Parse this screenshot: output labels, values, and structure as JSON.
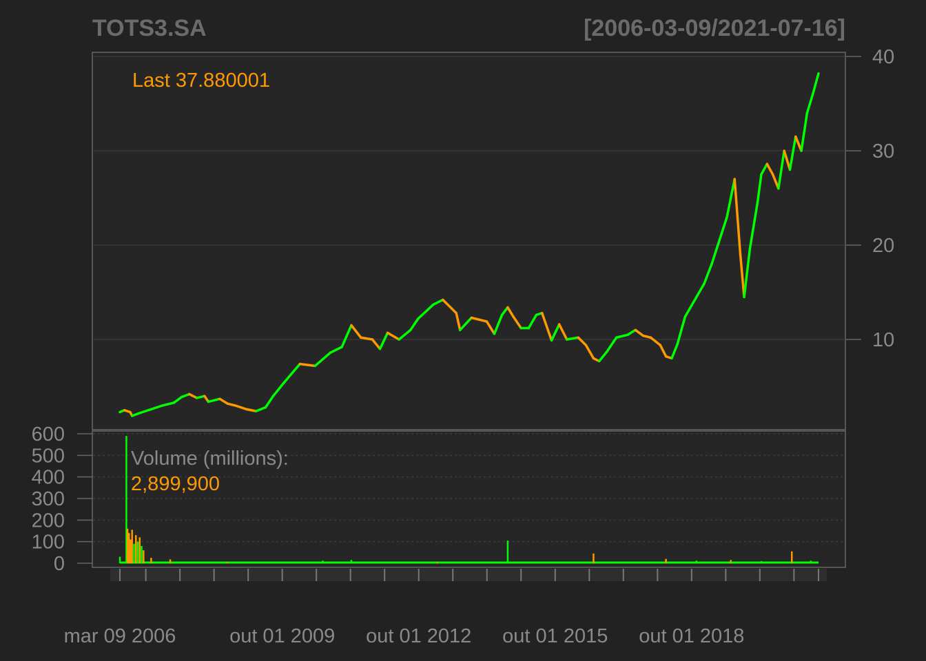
{
  "chart_data": {
    "type": "line",
    "title": "TOTS3.SA",
    "date_range": "[2006-03-09/2021-07-16]",
    "last_label": "Last 37.880001",
    "colors": {
      "up": "#00ff00",
      "down": "#ff9900",
      "text": "#8a8a8a",
      "background": "#222222",
      "panel": "#262626",
      "frame": "#666666"
    },
    "price_axis": {
      "ylim": [
        0,
        40
      ],
      "ticks": [
        10,
        20,
        30,
        40
      ]
    },
    "volume_axis": {
      "ylim": [
        0,
        600
      ],
      "ticks": [
        0,
        100,
        200,
        300,
        400,
        500,
        600
      ]
    },
    "volume_label": "Volume (millions):",
    "volume_last": "2,899,900",
    "x_range": [
      2006.18,
      2021.54
    ],
    "x_ticks": [
      2006.18,
      2006.75,
      2007.5,
      2008.25,
      2009.0,
      2009.75,
      2010.5,
      2011.25,
      2012.0,
      2012.75,
      2013.5,
      2014.25,
      2015.0,
      2015.75,
      2016.5,
      2017.25,
      2018.0,
      2018.75,
      2019.5,
      2020.25,
      2021.0,
      2021.54
    ],
    "x_tick_labels": [
      {
        "x": 2006.18,
        "label": "mar 09 2006"
      },
      {
        "x": 2009.75,
        "label": "out 01 2009"
      },
      {
        "x": 2012.75,
        "label": "out 01 2012"
      },
      {
        "x": 2015.75,
        "label": "out 01 2015"
      },
      {
        "x": 2018.75,
        "label": "out 01 2018"
      }
    ],
    "price_series": {
      "name": "TOTS3.SA",
      "points": [
        [
          2006.18,
          2.3
        ],
        [
          2006.3,
          2.5
        ],
        [
          2006.45,
          2.3
        ],
        [
          2006.5,
          1.9
        ],
        [
          2006.7,
          2.2
        ],
        [
          2007.0,
          2.6
        ],
        [
          2007.3,
          3.0
        ],
        [
          2007.6,
          3.3
        ],
        [
          2007.8,
          3.9
        ],
        [
          2008.0,
          4.2
        ],
        [
          2008.2,
          3.8
        ],
        [
          2008.4,
          4.0
        ],
        [
          2008.5,
          3.4
        ],
        [
          2008.8,
          3.7
        ],
        [
          2009.0,
          3.2
        ],
        [
          2009.2,
          3.0
        ],
        [
          2009.5,
          2.6
        ],
        [
          2009.75,
          2.4
        ],
        [
          2010.0,
          2.8
        ],
        [
          2010.2,
          4.0
        ],
        [
          2010.5,
          5.5
        ],
        [
          2010.9,
          7.4
        ],
        [
          2011.3,
          7.2
        ],
        [
          2011.7,
          8.6
        ],
        [
          2012.0,
          9.2
        ],
        [
          2012.25,
          11.5
        ],
        [
          2012.5,
          10.2
        ],
        [
          2012.8,
          10.0
        ],
        [
          2013.0,
          9.0
        ],
        [
          2013.2,
          10.7
        ],
        [
          2013.5,
          10.0
        ],
        [
          2013.8,
          11.0
        ],
        [
          2014.0,
          12.2
        ],
        [
          2014.4,
          13.7
        ],
        [
          2014.65,
          14.2
        ],
        [
          2014.75,
          13.8
        ],
        [
          2015.0,
          12.8
        ],
        [
          2015.1,
          11.0
        ],
        [
          2015.4,
          12.3
        ],
        [
          2015.8,
          11.9
        ],
        [
          2016.0,
          10.6
        ],
        [
          2016.2,
          12.6
        ],
        [
          2016.35,
          13.4
        ],
        [
          2016.5,
          12.4
        ],
        [
          2016.7,
          11.2
        ],
        [
          2016.9,
          11.2
        ],
        [
          2017.1,
          12.6
        ],
        [
          2017.25,
          12.8
        ],
        [
          2017.5,
          9.9
        ],
        [
          2017.7,
          11.6
        ],
        [
          2017.9,
          10.0
        ],
        [
          2018.2,
          10.2
        ],
        [
          2018.4,
          9.4
        ],
        [
          2018.6,
          8.0
        ],
        [
          2018.75,
          7.7
        ],
        [
          2018.95,
          8.7
        ],
        [
          2019.2,
          10.2
        ],
        [
          2019.5,
          10.5
        ],
        [
          2019.7,
          11.0
        ],
        [
          2019.9,
          10.4
        ],
        [
          2020.1,
          10.2
        ],
        [
          2020.35,
          9.4
        ],
        [
          2020.5,
          8.2
        ],
        [
          2020.65,
          8.0
        ],
        [
          2020.8,
          9.5
        ],
        [
          2021.0,
          12.4
        ],
        [
          2021.3,
          14.5
        ],
        [
          2021.5,
          15.9
        ],
        [
          2021.7,
          18.0
        ],
        [
          2021.9,
          20.5
        ],
        [
          2022.1,
          23.0
        ],
        [
          2022.3,
          27.0
        ],
        [
          2022.45,
          19.0
        ],
        [
          2022.55,
          14.5
        ],
        [
          2022.7,
          19.6
        ],
        [
          2022.9,
          24.5
        ],
        [
          2023.0,
          27.5
        ],
        [
          2023.15,
          28.6
        ],
        [
          2023.3,
          27.5
        ],
        [
          2023.45,
          26.0
        ],
        [
          2023.6,
          30.0
        ],
        [
          2023.75,
          28.0
        ],
        [
          2023.9,
          31.5
        ],
        [
          2024.05,
          30.0
        ],
        [
          2024.2,
          34.0
        ],
        [
          2024.35,
          36.0
        ],
        [
          2024.5,
          38.2
        ]
      ]
    },
    "volume_series": {
      "name": "Volume",
      "bars": [
        [
          2006.18,
          30,
          "up"
        ],
        [
          2006.35,
          590,
          "up"
        ],
        [
          2006.38,
          160,
          "down"
        ],
        [
          2006.42,
          140,
          "down"
        ],
        [
          2006.46,
          110,
          "down"
        ],
        [
          2006.5,
          155,
          "down"
        ],
        [
          2006.55,
          90,
          "up"
        ],
        [
          2006.6,
          130,
          "down"
        ],
        [
          2006.65,
          100,
          "up"
        ],
        [
          2006.7,
          120,
          "down"
        ],
        [
          2006.75,
          80,
          "up"
        ],
        [
          2006.8,
          60,
          "down"
        ],
        [
          2007.0,
          25,
          "down"
        ],
        [
          2007.5,
          18,
          "down"
        ],
        [
          2008.2,
          6,
          "up"
        ],
        [
          2009.0,
          5,
          "down"
        ],
        [
          2010.0,
          5,
          "up"
        ],
        [
          2011.5,
          12,
          "up"
        ],
        [
          2012.25,
          15,
          "up"
        ],
        [
          2014.5,
          5,
          "down"
        ],
        [
          2016.35,
          105,
          "up"
        ],
        [
          2018.6,
          45,
          "down"
        ],
        [
          2020.5,
          20,
          "down"
        ],
        [
          2021.3,
          12,
          "up"
        ],
        [
          2022.2,
          15,
          "down"
        ],
        [
          2023.0,
          10,
          "up"
        ],
        [
          2023.8,
          55,
          "down"
        ],
        [
          2024.3,
          12,
          "up"
        ]
      ]
    }
  }
}
